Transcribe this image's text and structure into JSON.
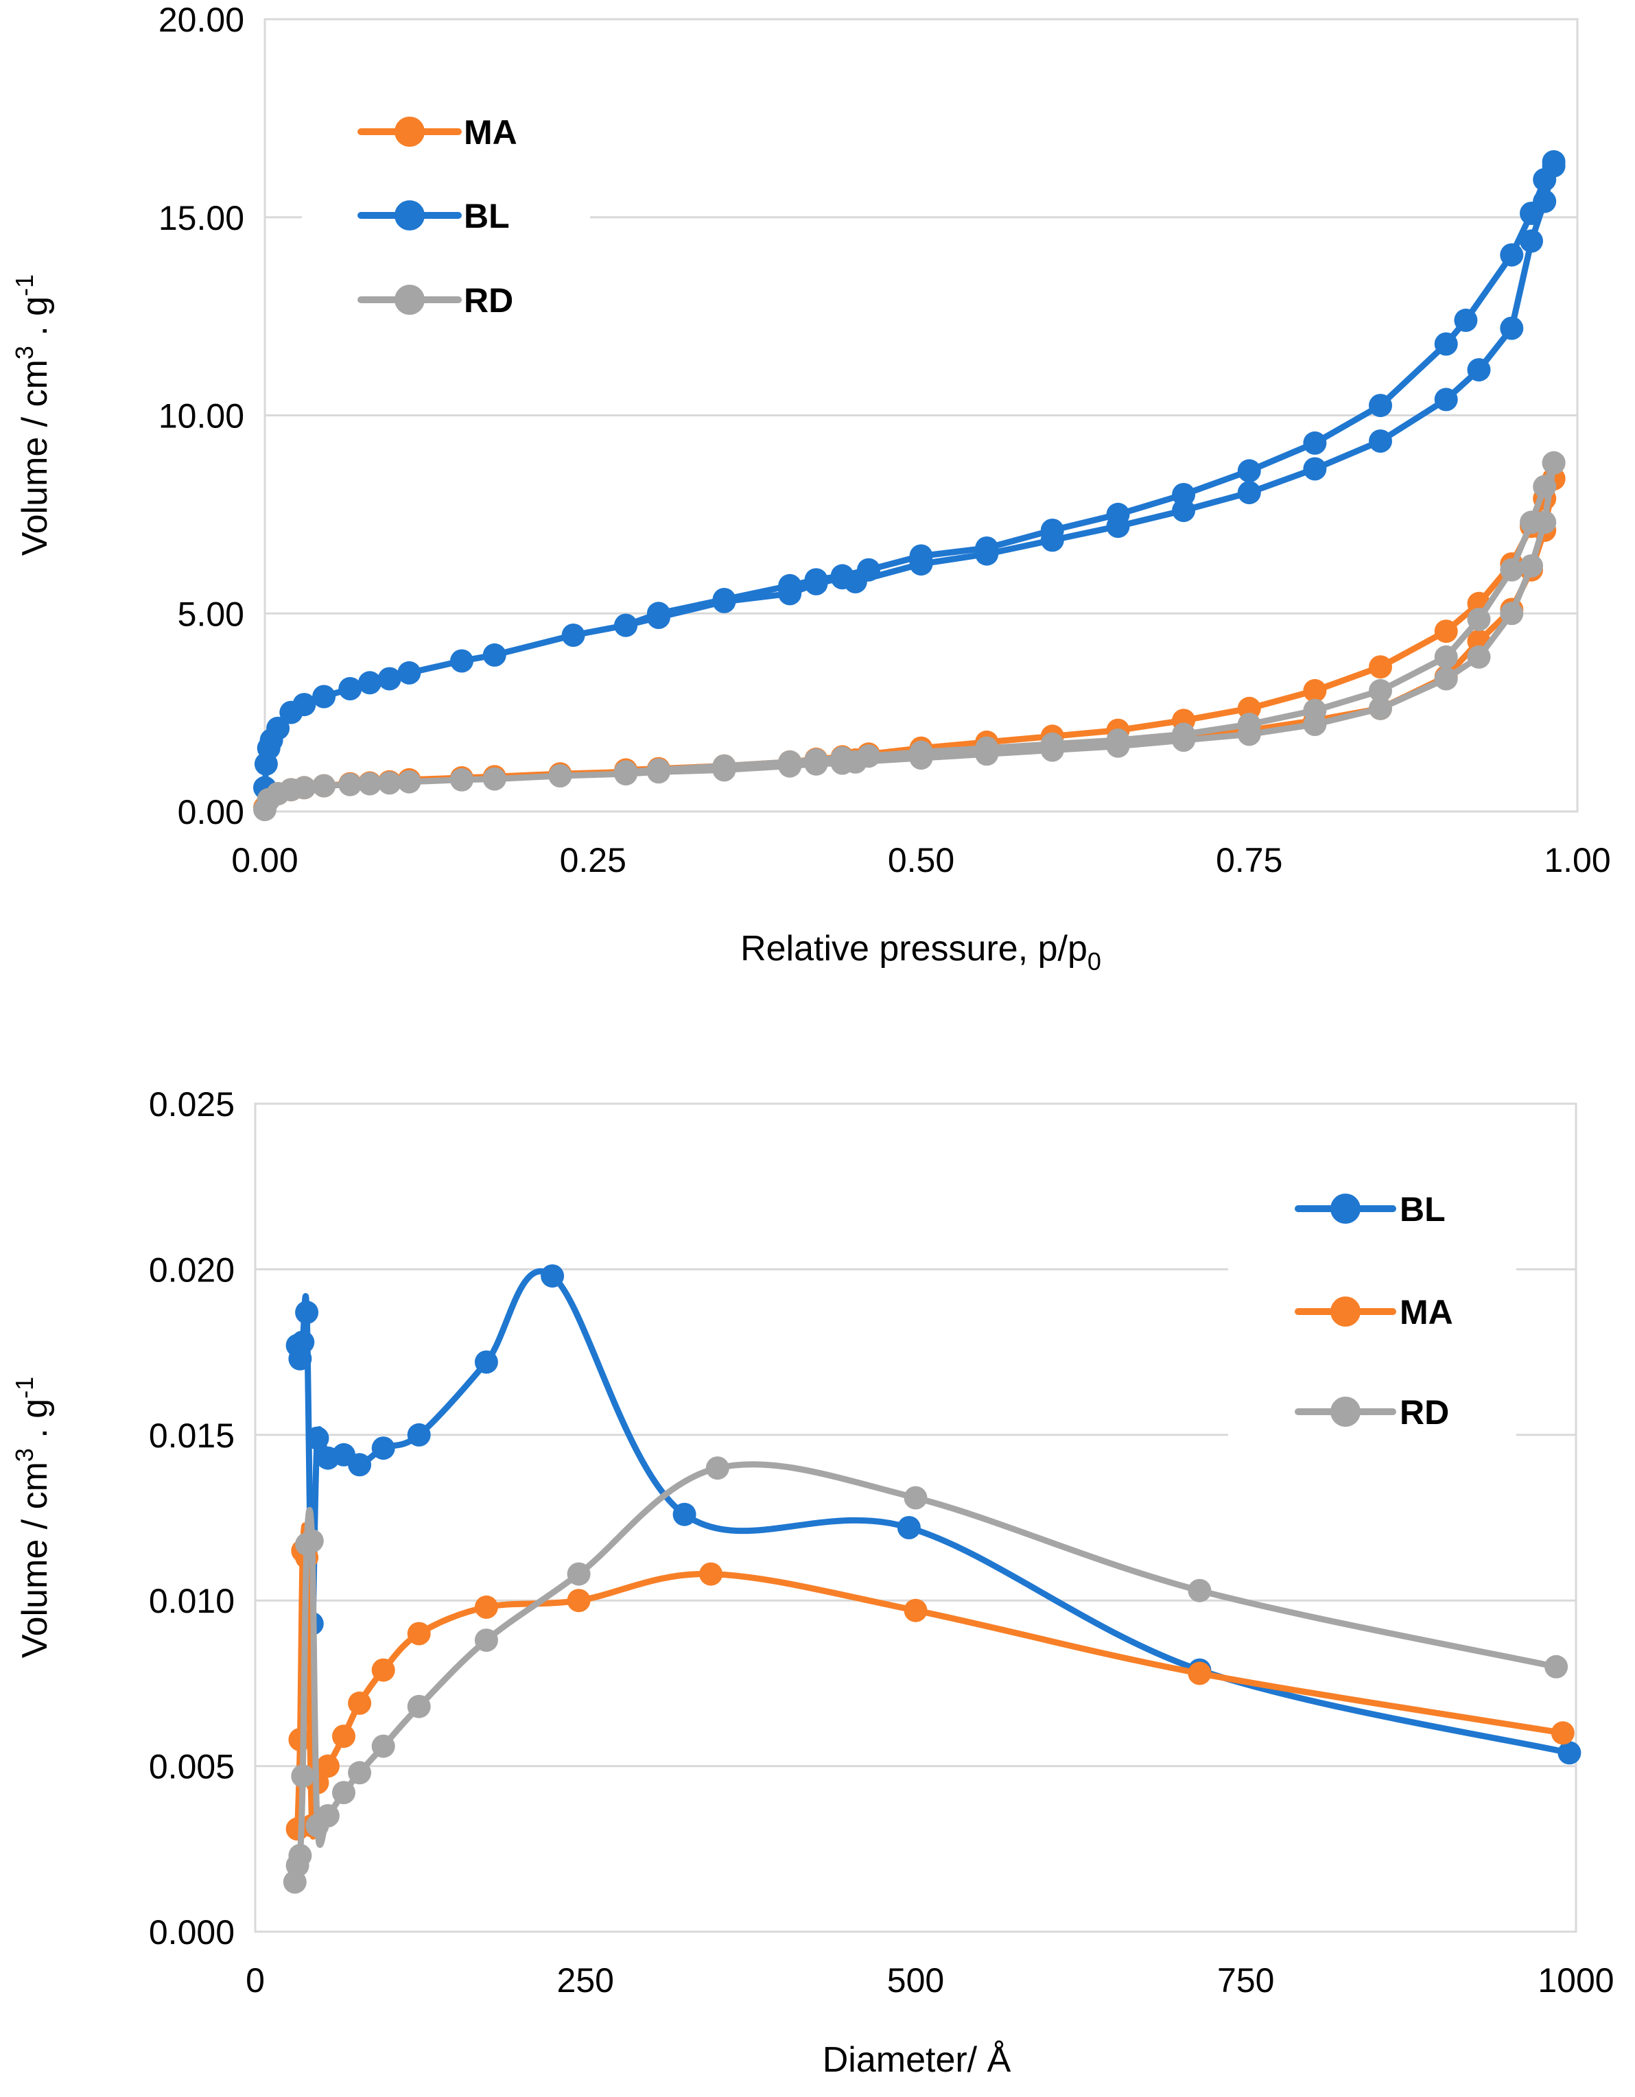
{
  "chart_data": [
    {
      "type": "scatter",
      "title": "",
      "xlabel": "Relative pressure, p/p",
      "xlabel_subscript": "0",
      "ylabel": "Volume / cm",
      "ylabel_sup1": "3",
      "ylabel_mid": " . g",
      "ylabel_sup2": "-1",
      "xlim": [
        0,
        1
      ],
      "ylim": [
        0,
        20
      ],
      "xticks": [
        "0.00",
        "0.25",
        "0.50",
        "0.75",
        "1.00"
      ],
      "yticks": [
        "0.00",
        "5.00",
        "10.00",
        "15.00",
        "20.00"
      ],
      "legend": [
        "MA",
        "BL",
        "RD"
      ],
      "grid": "horizontal",
      "series": [
        {
          "name": "BL",
          "color": "#1f77d0",
          "adsorption": {
            "x": [
              0.0,
              0.001,
              0.003,
              0.005,
              0.01,
              0.02,
              0.03,
              0.045,
              0.065,
              0.08,
              0.095,
              0.11,
              0.15,
              0.175,
              0.235,
              0.275,
              0.3,
              0.35,
              0.4,
              0.42,
              0.44,
              0.45,
              0.5,
              0.55,
              0.6,
              0.65,
              0.7,
              0.75,
              0.8,
              0.85,
              0.9,
              0.925,
              0.95,
              0.965,
              0.975,
              0.982
            ],
            "y": [
              0.6,
              1.2,
              1.6,
              1.8,
              2.1,
              2.5,
              2.7,
              2.9,
              3.1,
              3.25,
              3.35,
              3.5,
              3.8,
              3.95,
              4.45,
              4.7,
              4.9,
              5.3,
              5.5,
              5.75,
              5.9,
              5.8,
              6.25,
              6.5,
              6.85,
              7.2,
              7.6,
              8.05,
              8.65,
              9.35,
              10.4,
              11.15,
              12.2,
              14.4,
              15.4,
              16.3
            ]
          },
          "desorption": {
            "x": [
              0.982,
              0.975,
              0.965,
              0.95,
              0.915,
              0.9,
              0.85,
              0.8,
              0.75,
              0.7,
              0.65,
              0.6,
              0.55,
              0.5,
              0.46,
              0.44,
              0.42,
              0.4,
              0.35,
              0.3,
              0.275
            ],
            "y": [
              16.4,
              15.95,
              15.1,
              14.05,
              12.4,
              11.8,
              10.25,
              9.3,
              8.6,
              8.0,
              7.5,
              7.1,
              6.65,
              6.45,
              6.1,
              5.95,
              5.85,
              5.7,
              5.35,
              5.0,
              4.7
            ]
          }
        },
        {
          "name": "MA",
          "color": "#f77f27",
          "adsorption": {
            "x": [
              0.0,
              0.003,
              0.01,
              0.02,
              0.03,
              0.045,
              0.065,
              0.08,
              0.095,
              0.11,
              0.15,
              0.175,
              0.225,
              0.275,
              0.3,
              0.35,
              0.4,
              0.42,
              0.44,
              0.45,
              0.5,
              0.55,
              0.6,
              0.65,
              0.7,
              0.75,
              0.8,
              0.85,
              0.9,
              0.925,
              0.95,
              0.965,
              0.975,
              0.982
            ],
            "y": [
              0.1,
              0.3,
              0.45,
              0.55,
              0.6,
              0.65,
              0.7,
              0.72,
              0.75,
              0.8,
              0.85,
              0.88,
              0.95,
              1.0,
              1.05,
              1.12,
              1.2,
              1.25,
              1.28,
              1.3,
              1.45,
              1.55,
              1.65,
              1.75,
              1.9,
              2.05,
              2.3,
              2.6,
              3.4,
              4.3,
              5.1,
              6.1,
              7.1,
              8.4
            ]
          },
          "desorption": {
            "x": [
              0.982,
              0.975,
              0.965,
              0.95,
              0.925,
              0.9,
              0.85,
              0.8,
              0.75,
              0.7,
              0.65,
              0.6,
              0.55,
              0.5,
              0.46,
              0.44,
              0.42,
              0.4,
              0.35,
              0.3,
              0.275
            ],
            "y": [
              8.4,
              7.9,
              7.2,
              6.25,
              5.25,
              4.55,
              3.65,
              3.05,
              2.6,
              2.3,
              2.05,
              1.9,
              1.75,
              1.6,
              1.45,
              1.38,
              1.32,
              1.25,
              1.15,
              1.08,
              1.05
            ]
          }
        },
        {
          "name": "RD",
          "color": "#a5a5a5",
          "adsorption": {
            "x": [
              0.0,
              0.003,
              0.01,
              0.02,
              0.03,
              0.045,
              0.065,
              0.08,
              0.095,
              0.11,
              0.15,
              0.175,
              0.225,
              0.275,
              0.3,
              0.35,
              0.4,
              0.42,
              0.44,
              0.45,
              0.5,
              0.55,
              0.6,
              0.65,
              0.7,
              0.75,
              0.8,
              0.85,
              0.9,
              0.925,
              0.95,
              0.965,
              0.975,
              0.982
            ],
            "y": [
              0.05,
              0.3,
              0.45,
              0.55,
              0.6,
              0.65,
              0.68,
              0.7,
              0.72,
              0.75,
              0.8,
              0.82,
              0.9,
              0.95,
              1.0,
              1.05,
              1.15,
              1.2,
              1.22,
              1.25,
              1.35,
              1.45,
              1.55,
              1.65,
              1.8,
              1.95,
              2.2,
              2.6,
              3.35,
              3.9,
              5.0,
              6.2,
              7.3,
              8.8
            ]
          },
          "desorption": {
            "x": [
              0.982,
              0.975,
              0.965,
              0.95,
              0.925,
              0.9,
              0.85,
              0.8,
              0.75,
              0.7,
              0.65,
              0.6,
              0.55,
              0.5,
              0.46,
              0.44,
              0.42,
              0.4,
              0.35,
              0.3,
              0.275
            ],
            "y": [
              8.8,
              8.2,
              7.3,
              6.1,
              4.85,
              3.9,
              3.05,
              2.55,
              2.2,
              1.95,
              1.8,
              1.7,
              1.6,
              1.5,
              1.4,
              1.35,
              1.3,
              1.25,
              1.15,
              1.05,
              1.0
            ]
          }
        }
      ]
    },
    {
      "type": "line",
      "title": "",
      "xlabel": "Diameter/ Å",
      "ylabel": "Volume / cm",
      "ylabel_sup1": "3",
      "ylabel_mid": " . g",
      "ylabel_sup2": "-1",
      "xlim": [
        0,
        1000
      ],
      "ylim": [
        0,
        0.025
      ],
      "xticks": [
        "0",
        "250",
        "500",
        "750",
        "1000"
      ],
      "yticks": [
        "0.000",
        "0.005",
        "0.010",
        "0.015",
        "0.020",
        "0.025"
      ],
      "legend": [
        "BL",
        "MA",
        "RD"
      ],
      "grid": "horizontal",
      "series": [
        {
          "name": "BL",
          "color": "#1f77d0",
          "x": [
            32,
            34,
            36,
            39,
            43,
            47,
            55,
            67,
            79,
            97,
            124,
            175,
            225,
            325,
            495,
            715,
            995
          ],
          "y": [
            0.0177,
            0.0173,
            0.0178,
            0.0187,
            0.0093,
            0.0149,
            0.0143,
            0.0144,
            0.0141,
            0.0146,
            0.015,
            0.0172,
            0.0198,
            0.0126,
            0.0122,
            0.0079,
            0.0054
          ]
        },
        {
          "name": "MA",
          "color": "#f77f27",
          "x": [
            32,
            34,
            36,
            39,
            43,
            47,
            55,
            67,
            79,
            97,
            124,
            175,
            245,
            345,
            500,
            715,
            990
          ],
          "y": [
            0.0031,
            0.0058,
            0.0115,
            0.0113,
            0.0032,
            0.0045,
            0.005,
            0.0059,
            0.0069,
            0.0079,
            0.009,
            0.0098,
            0.01,
            0.0108,
            0.0097,
            0.0078,
            0.006
          ]
        },
        {
          "name": "RD",
          "color": "#a5a5a5",
          "x": [
            30,
            32,
            34,
            36,
            39,
            43,
            47,
            55,
            67,
            79,
            97,
            124,
            175,
            245,
            350,
            500,
            715,
            985
          ],
          "y": [
            0.0015,
            0.002,
            0.0023,
            0.0047,
            0.0117,
            0.0118,
            0.0032,
            0.0035,
            0.0042,
            0.0048,
            0.0056,
            0.0068,
            0.0088,
            0.0108,
            0.014,
            0.0131,
            0.0103,
            0.008
          ]
        }
      ]
    }
  ]
}
